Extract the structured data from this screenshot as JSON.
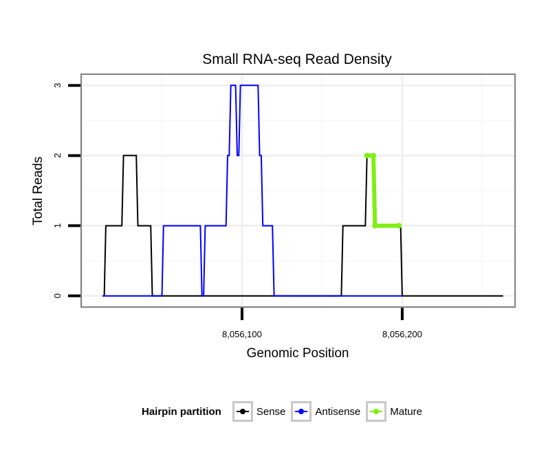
{
  "chart_data": {
    "type": "line",
    "title": "Small RNA-seq Read Density",
    "xlabel": "Genomic Position",
    "ylabel": "Total Reads",
    "xlim": [
      8056000,
      8056270
    ],
    "ylim": [
      -0.15,
      3.15
    ],
    "x_ticks": [
      8056100,
      8056200
    ],
    "x_tick_labels": [
      "8,056,100",
      "8,056,200"
    ],
    "y_ticks": [
      0,
      1,
      2,
      3
    ],
    "y_tick_labels": [
      "0",
      "1",
      "2",
      "3"
    ],
    "grid": true,
    "legend_position": "bottom",
    "series": [
      {
        "name": "Sense",
        "color": "#000000",
        "points": [
          [
            8056013,
            0
          ],
          [
            8056014,
            0
          ],
          [
            8056015,
            1
          ],
          [
            8056025,
            1
          ],
          [
            8056026,
            2
          ],
          [
            8056034,
            2
          ],
          [
            8056035,
            1
          ],
          [
            8056043,
            1
          ],
          [
            8056044,
            0
          ],
          [
            8056162,
            0
          ],
          [
            8056163,
            1
          ],
          [
            8056177,
            1
          ],
          [
            8056178,
            2
          ],
          [
            8056182,
            2
          ],
          [
            8056183,
            1
          ],
          [
            8056199,
            1
          ],
          [
            8056200,
            0
          ],
          [
            8056263,
            0
          ]
        ]
      },
      {
        "name": "Antisense",
        "color": "#0000ff",
        "points": [
          [
            8056013,
            0
          ],
          [
            8056050,
            0
          ],
          [
            8056051,
            1
          ],
          [
            8056074,
            1
          ],
          [
            8056075,
            0
          ],
          [
            8056076,
            0
          ],
          [
            8056077,
            1
          ],
          [
            8056090,
            1
          ],
          [
            8056091,
            2
          ],
          [
            8056092,
            2
          ],
          [
            8056093,
            3
          ],
          [
            8056096,
            3
          ],
          [
            8056097,
            2
          ],
          [
            8056098,
            2
          ],
          [
            8056099,
            3
          ],
          [
            8056110,
            3
          ],
          [
            8056111,
            2
          ],
          [
            8056112,
            2
          ],
          [
            8056113,
            1
          ],
          [
            8056119,
            1
          ],
          [
            8056120,
            0
          ],
          [
            8056200,
            0
          ]
        ]
      },
      {
        "name": "Mature",
        "color": "#80ee14",
        "points": [
          [
            8056178,
            2
          ],
          [
            8056182,
            2
          ],
          [
            8056183,
            1
          ],
          [
            8056198,
            1
          ]
        ]
      }
    ]
  },
  "legend": {
    "title": "Hairpin partition",
    "items": [
      {
        "label": "Sense",
        "color": "#000000"
      },
      {
        "label": "Antisense",
        "color": "#0000ff"
      },
      {
        "label": "Mature",
        "color": "#80ee14"
      }
    ]
  }
}
